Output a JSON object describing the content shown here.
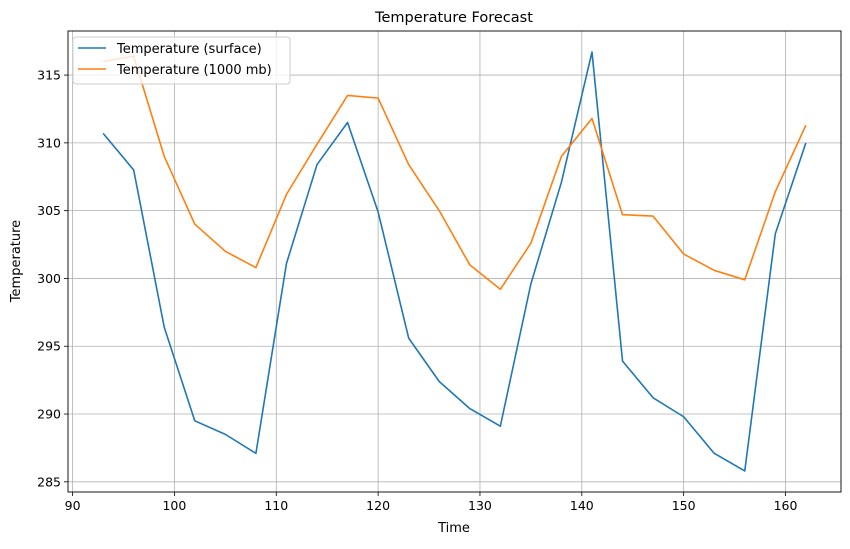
{
  "chart_data": {
    "type": "line",
    "title": "Temperature Forecast",
    "xlabel": "Time",
    "ylabel": "Temperature",
    "xlim": [
      89.55,
      165.45
    ],
    "ylim": [
      284.25,
      318.25
    ],
    "xticks": [
      90,
      100,
      110,
      120,
      130,
      140,
      150,
      160
    ],
    "yticks": [
      285,
      290,
      295,
      300,
      305,
      310,
      315
    ],
    "grid": true,
    "legend_position": "top-left",
    "x": [
      93,
      96,
      99,
      102,
      105,
      108,
      111,
      114,
      117,
      120,
      123,
      126,
      129,
      132,
      135,
      138,
      141,
      144,
      147,
      150,
      153,
      156,
      159,
      162
    ],
    "series": [
      {
        "name": "Temperature (surface)",
        "color": "#1f77b4",
        "values": [
          310.7,
          308.0,
          296.4,
          289.5,
          288.5,
          287.1,
          301.1,
          308.4,
          311.5,
          304.9,
          295.6,
          292.4,
          290.4,
          289.1,
          299.6,
          307.1,
          316.7,
          293.9,
          291.2,
          289.8,
          287.1,
          285.8,
          303.3,
          310.0
        ]
      },
      {
        "name": "Temperature (1000 mb)",
        "color": "#ff7f0e",
        "values": [
          316.0,
          316.4,
          309.0,
          304.0,
          302.0,
          300.8,
          306.2,
          309.9,
          313.5,
          313.3,
          308.4,
          305.0,
          301.0,
          299.2,
          302.6,
          309.0,
          311.8,
          304.7,
          304.6,
          301.8,
          300.6,
          299.9,
          306.4,
          311.3
        ]
      }
    ]
  }
}
